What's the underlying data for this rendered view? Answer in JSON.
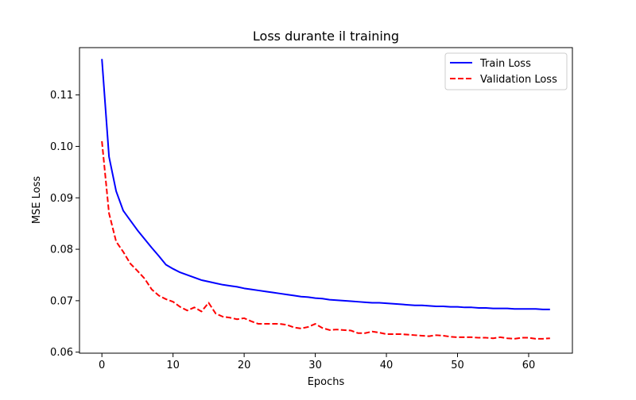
{
  "chart_data": {
    "type": "line",
    "title": "Loss durante il training",
    "xlabel": "Epochs",
    "ylabel": "MSE Loss",
    "xlim": [
      -3.15,
      66.15
    ],
    "ylim": [
      0.0598,
      0.1192
    ],
    "xticks": [
      0,
      10,
      20,
      30,
      40,
      50,
      60
    ],
    "yticks": [
      0.06,
      0.07,
      0.08,
      0.09,
      0.1,
      0.11
    ],
    "ytick_labels": [
      "0.06",
      "0.07",
      "0.08",
      "0.09",
      "0.10",
      "0.11"
    ],
    "grid": false,
    "legend_position": "top-right",
    "series": [
      {
        "name": "Train Loss",
        "color": "#0000ff",
        "dash": "solid",
        "x": [
          0,
          1,
          2,
          3,
          4,
          5,
          6,
          7,
          8,
          9,
          10,
          11,
          12,
          13,
          14,
          15,
          16,
          17,
          18,
          19,
          20,
          21,
          22,
          23,
          24,
          25,
          26,
          27,
          28,
          29,
          30,
          31,
          32,
          33,
          34,
          35,
          36,
          37,
          38,
          39,
          40,
          41,
          42,
          43,
          44,
          45,
          46,
          47,
          48,
          49,
          50,
          51,
          52,
          53,
          54,
          55,
          56,
          57,
          58,
          59,
          60,
          61,
          62,
          63
        ],
        "values": [
          0.117,
          0.098,
          0.0913,
          0.0875,
          0.0856,
          0.0837,
          0.082,
          0.0803,
          0.0787,
          0.077,
          0.0762,
          0.0755,
          0.075,
          0.0745,
          0.074,
          0.0737,
          0.0734,
          0.0731,
          0.0729,
          0.0727,
          0.0724,
          0.0722,
          0.072,
          0.0718,
          0.0716,
          0.0714,
          0.0712,
          0.071,
          0.0708,
          0.0707,
          0.0705,
          0.0704,
          0.0702,
          0.0701,
          0.07,
          0.0699,
          0.0698,
          0.0697,
          0.0696,
          0.0696,
          0.0695,
          0.0694,
          0.0693,
          0.0692,
          0.0691,
          0.0691,
          0.069,
          0.0689,
          0.0689,
          0.0688,
          0.0688,
          0.0687,
          0.0687,
          0.0686,
          0.0686,
          0.0685,
          0.0685,
          0.0685,
          0.0684,
          0.0684,
          0.0684,
          0.0684,
          0.0683,
          0.0683
        ]
      },
      {
        "name": "Validation Loss",
        "color": "#ff0000",
        "dash": "dashed",
        "x": [
          0,
          1,
          2,
          3,
          4,
          5,
          6,
          7,
          8,
          9,
          10,
          11,
          12,
          13,
          14,
          15,
          16,
          17,
          18,
          19,
          20,
          21,
          22,
          23,
          24,
          25,
          26,
          27,
          28,
          29,
          30,
          31,
          32,
          33,
          34,
          35,
          36,
          37,
          38,
          39,
          40,
          41,
          42,
          43,
          44,
          45,
          46,
          47,
          48,
          49,
          50,
          51,
          52,
          53,
          54,
          55,
          56,
          57,
          58,
          59,
          60,
          61,
          62,
          63
        ],
        "values": [
          0.101,
          0.087,
          0.0815,
          0.0795,
          0.0772,
          0.0758,
          0.0743,
          0.0722,
          0.071,
          0.0703,
          0.0698,
          0.0688,
          0.0681,
          0.0687,
          0.0679,
          0.0696,
          0.0675,
          0.0669,
          0.0667,
          0.0664,
          0.0666,
          0.066,
          0.0655,
          0.0655,
          0.0655,
          0.0655,
          0.0653,
          0.0648,
          0.0646,
          0.0649,
          0.0655,
          0.0647,
          0.0643,
          0.0644,
          0.0643,
          0.0642,
          0.0637,
          0.0637,
          0.064,
          0.0638,
          0.0635,
          0.0635,
          0.0635,
          0.0634,
          0.0633,
          0.0632,
          0.0631,
          0.0633,
          0.0632,
          0.063,
          0.0629,
          0.0629,
          0.0629,
          0.0628,
          0.0628,
          0.0627,
          0.0629,
          0.0627,
          0.0626,
          0.0628,
          0.0628,
          0.0626,
          0.0626,
          0.0627
        ]
      }
    ]
  }
}
